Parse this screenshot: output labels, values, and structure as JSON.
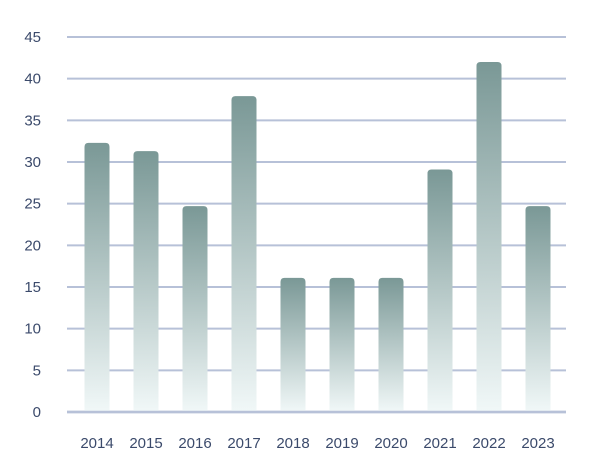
{
  "chart_data": {
    "type": "bar",
    "title": "",
    "xlabel": "",
    "ylabel": "",
    "categories": [
      "2014",
      "2015",
      "2016",
      "2017",
      "2018",
      "2019",
      "2020",
      "2021",
      "2022",
      "2023"
    ],
    "values": [
      32.3,
      31.3,
      24.7,
      37.9,
      16.1,
      16.1,
      16.1,
      29.1,
      42.0,
      24.7
    ],
    "ylim": [
      0,
      45
    ],
    "yticks": [
      "0",
      "5",
      "10",
      "15",
      "20",
      "25",
      "30",
      "35",
      "40",
      "45"
    ],
    "grid": true,
    "legend": "none",
    "colors": {
      "bar_top": "#7a9896",
      "bar_bottom": "#f1f8f8",
      "gridline": "#b7c1d8",
      "tick_text": "#3b4a6b"
    }
  }
}
